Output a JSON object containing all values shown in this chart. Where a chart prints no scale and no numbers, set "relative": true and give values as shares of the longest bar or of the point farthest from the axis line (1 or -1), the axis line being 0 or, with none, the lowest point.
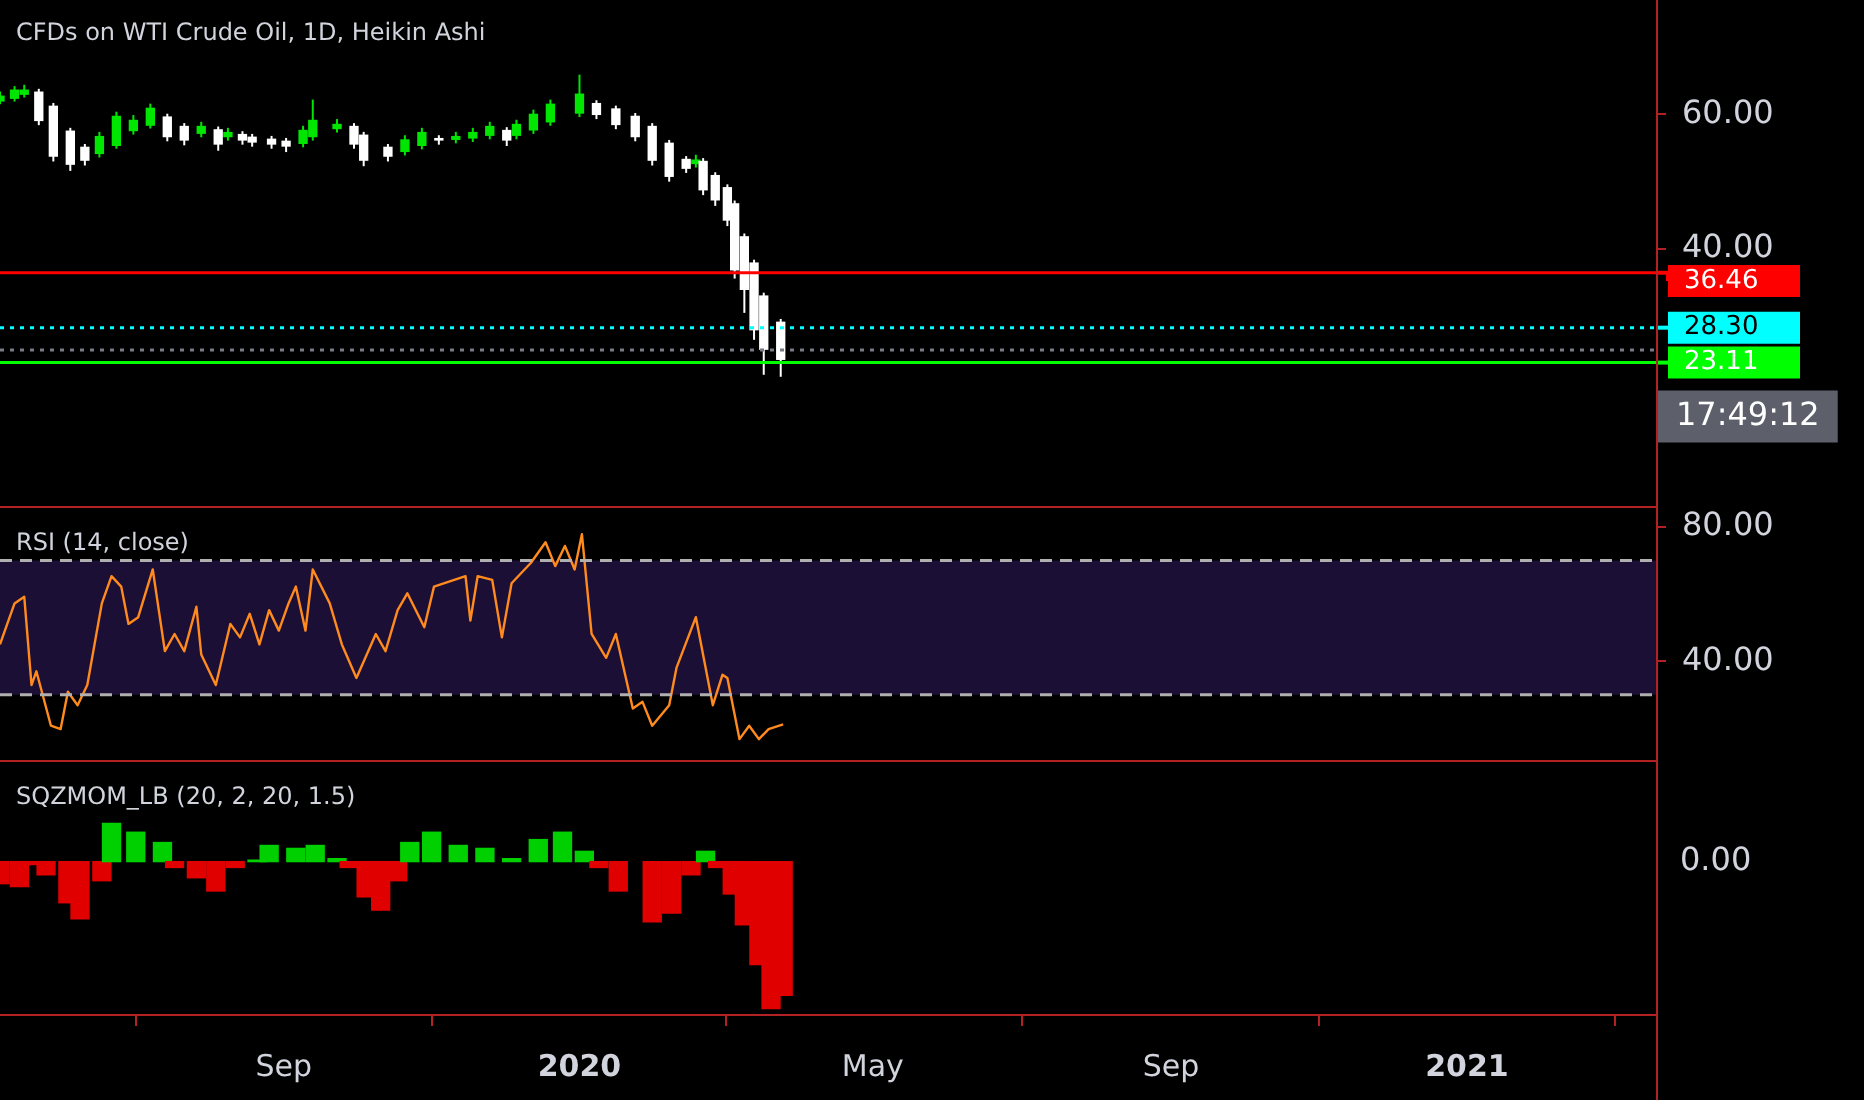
{
  "chart_data": [
    {
      "type": "candlestick",
      "title": "CFDs on WTI Crude Oil, 1D, Heikin Ashi",
      "x": [
        "2019-05-07",
        "2019-05-13",
        "2019-05-17",
        "2019-05-23",
        "2019-05-29",
        "2019-06-05",
        "2019-06-11",
        "2019-06-17",
        "2019-06-24",
        "2019-07-01",
        "2019-07-08",
        "2019-07-15",
        "2019-07-22",
        "2019-07-29",
        "2019-08-05",
        "2019-08-09",
        "2019-08-15",
        "2019-08-19",
        "2019-08-27",
        "2019-09-02",
        "2019-09-09",
        "2019-09-13",
        "2019-09-23",
        "2019-09-30",
        "2019-10-04",
        "2019-10-14",
        "2019-10-21",
        "2019-10-28",
        "2019-11-04",
        "2019-11-11",
        "2019-11-18",
        "2019-11-25",
        "2019-12-02",
        "2019-12-06",
        "2019-12-13",
        "2019-12-20",
        "2020-01-01",
        "2020-01-08",
        "2020-01-16",
        "2020-01-24",
        "2020-01-31",
        "2020-02-07",
        "2020-02-14",
        "2020-02-18",
        "2020-02-21",
        "2020-02-26",
        "2020-03-02",
        "2020-03-05",
        "2020-03-09",
        "2020-03-13",
        "2020-03-17",
        "2020-03-24"
      ],
      "ohlc": [
        [
          62.0,
          63.4,
          61.5,
          62.7
        ],
        [
          62.4,
          64.2,
          61.9,
          63.6
        ],
        [
          63.0,
          64.4,
          62.5,
          63.6
        ],
        [
          63.3,
          63.8,
          58.4,
          59.1
        ],
        [
          61.2,
          61.7,
          53.0,
          53.8
        ],
        [
          57.5,
          58.0,
          51.6,
          52.6
        ],
        [
          55.1,
          55.6,
          52.4,
          53.2
        ],
        [
          54.2,
          57.4,
          53.6,
          56.7
        ],
        [
          55.4,
          60.4,
          54.9,
          59.7
        ],
        [
          57.6,
          59.9,
          57.0,
          59.1
        ],
        [
          58.4,
          61.6,
          57.9,
          60.9
        ],
        [
          59.6,
          60.1,
          56.0,
          56.7
        ],
        [
          58.2,
          58.7,
          55.4,
          56.2
        ],
        [
          57.2,
          58.9,
          56.6,
          58.2
        ],
        [
          57.7,
          58.2,
          54.6,
          55.6
        ],
        [
          56.7,
          58.0,
          56.1,
          57.3
        ],
        [
          57.0,
          57.5,
          55.5,
          56.2
        ],
        [
          56.6,
          57.1,
          55.2,
          55.9
        ],
        [
          56.3,
          56.8,
          54.9,
          55.6
        ],
        [
          56.0,
          56.5,
          54.4,
          55.3
        ],
        [
          55.7,
          58.3,
          55.1,
          57.6
        ],
        [
          56.7,
          62.2,
          56.1,
          59.1
        ],
        [
          57.9,
          59.3,
          57.3,
          58.5
        ],
        [
          58.2,
          58.7,
          54.9,
          55.6
        ],
        [
          56.9,
          57.4,
          52.3,
          53.2
        ],
        [
          55.1,
          55.6,
          53.0,
          53.8
        ],
        [
          54.5,
          56.9,
          53.9,
          56.2
        ],
        [
          55.4,
          58.0,
          54.8,
          57.3
        ],
        [
          56.4,
          56.9,
          55.5,
          56.2
        ],
        [
          56.3,
          57.4,
          55.7,
          56.7
        ],
        [
          56.5,
          58.0,
          55.9,
          57.3
        ],
        [
          56.9,
          58.9,
          56.3,
          58.2
        ],
        [
          57.6,
          58.1,
          55.3,
          56.2
        ],
        [
          56.9,
          59.2,
          56.3,
          58.5
        ],
        [
          57.7,
          60.7,
          57.1,
          60.0
        ],
        [
          58.9,
          62.2,
          58.3,
          61.5
        ],
        [
          60.2,
          65.9,
          59.6,
          63.0
        ],
        [
          61.6,
          62.1,
          59.3,
          60.0
        ],
        [
          60.8,
          61.3,
          57.8,
          58.5
        ],
        [
          59.7,
          60.2,
          56.0,
          56.7
        ],
        [
          58.2,
          58.7,
          52.4,
          53.2
        ],
        [
          55.7,
          56.2,
          50.0,
          50.8
        ],
        [
          53.3,
          53.8,
          51.3,
          52.0
        ],
        [
          52.7,
          54.0,
          52.1,
          53.2
        ],
        [
          53.0,
          53.5,
          48.0,
          48.8
        ],
        [
          50.9,
          51.4,
          46.4,
          47.3
        ],
        [
          49.1,
          49.6,
          43.4,
          44.3
        ],
        [
          46.7,
          47.2,
          35.6,
          36.9
        ],
        [
          41.8,
          42.3,
          30.5,
          34.0
        ],
        [
          37.9,
          38.4,
          26.5,
          28.0
        ],
        [
          33.0,
          33.5,
          21.3,
          25.1
        ],
        [
          29.1,
          29.6,
          21.0,
          23.6
        ]
      ],
      "colors": [
        "#00e600",
        "#00e600",
        "#00e600",
        "#ffffff",
        "#ffffff",
        "#ffffff",
        "#ffffff",
        "#00e600",
        "#00e600",
        "#00e600",
        "#00e600",
        "#ffffff",
        "#ffffff",
        "#00e600",
        "#ffffff",
        "#00e600",
        "#ffffff",
        "#ffffff",
        "#ffffff",
        "#ffffff",
        "#00e600",
        "#00e600",
        "#00e600",
        "#ffffff",
        "#ffffff",
        "#ffffff",
        "#00e600",
        "#00e600",
        "#ffffff",
        "#00e600",
        "#00e600",
        "#00e600",
        "#ffffff",
        "#00e600",
        "#00e600",
        "#00e600",
        "#00e600",
        "#ffffff",
        "#ffffff",
        "#ffffff",
        "#ffffff",
        "#ffffff",
        "#ffffff",
        "#00e600",
        "#ffffff",
        "#ffffff",
        "#ffffff",
        "#ffffff",
        "#ffffff",
        "#ffffff",
        "#ffffff",
        "#ffffff"
      ],
      "xlim": [
        "2019-05-07",
        "2021-03-20"
      ],
      "ylim": [
        1.5,
        77
      ],
      "yticks": [
        {
          "value": 60,
          "label": "60.00"
        },
        {
          "value": 40,
          "label": "40.00"
        }
      ],
      "tick_labels": "y",
      "ref_lines": [
        {
          "axis": "y",
          "value": 36.46,
          "label": "36.46",
          "color": "#ff0000",
          "line_style": "solid"
        },
        {
          "axis": "y",
          "value": 28.3,
          "label": "28.30",
          "color": "#00ffff",
          "line_style": "dotted"
        },
        {
          "axis": "y",
          "value": 25,
          "color": "#787b86",
          "line_style": "dotted"
        },
        {
          "axis": "y",
          "value": 23.11,
          "label": "23.11",
          "color": "#00ff00",
          "line_style": "solid"
        }
      ],
      "annotations": [
        "17:49:12"
      ]
    },
    {
      "type": "line",
      "title": "RSI (14, close)",
      "x": [
        "2019-05-07",
        "2019-05-13",
        "2019-05-17",
        "2019-05-20",
        "2019-05-22",
        "2019-05-28",
        "2019-06-01",
        "2019-06-04",
        "2019-06-08",
        "2019-06-12",
        "2019-06-18",
        "2019-06-22",
        "2019-06-26",
        "2019-06-29",
        "2019-07-03",
        "2019-07-09",
        "2019-07-14",
        "2019-07-18",
        "2019-07-22",
        "2019-07-27",
        "2019-07-29",
        "2019-08-04",
        "2019-08-10",
        "2019-08-14",
        "2019-08-18",
        "2019-08-22",
        "2019-08-26",
        "2019-08-30",
        "2019-09-03",
        "2019-09-06",
        "2019-09-10",
        "2019-09-13",
        "2019-09-20",
        "2019-09-25",
        "2019-10-01",
        "2019-10-09",
        "2019-10-13",
        "2019-10-18",
        "2019-10-22",
        "2019-10-29",
        "2019-11-02",
        "2019-11-15",
        "2019-11-17",
        "2019-11-20",
        "2019-11-26",
        "2019-11-30",
        "2019-12-04",
        "2019-12-12",
        "2019-12-18",
        "2019-12-22",
        "2019-12-26",
        "2019-12-30",
        "2020-01-02",
        "2020-01-06",
        "2020-01-12",
        "2020-01-16",
        "2020-01-23",
        "2020-01-27",
        "2020-01-31",
        "2020-02-07",
        "2020-02-10",
        "2020-02-18",
        "2020-02-25",
        "2020-02-29",
        "2020-03-02",
        "2020-03-07",
        "2020-03-11",
        "2020-03-15",
        "2020-03-19",
        "2020-03-25"
      ],
      "series": [
        {
          "color": "#ff8a1e",
          "values": [
            45.0,
            57.2,
            59.2,
            32.9,
            37.0,
            20.8,
            19.8,
            30.9,
            26.9,
            32.9,
            57.2,
            65.3,
            62.2,
            51.1,
            53.1,
            67.3,
            43.0,
            48.1,
            43.0,
            56.2,
            42.0,
            32.9,
            51.1,
            47.1,
            54.1,
            45.0,
            55.2,
            49.1,
            57.2,
            62.2,
            49.1,
            67.3,
            57.2,
            45.0,
            35.0,
            48.1,
            43.0,
            55.2,
            60.2,
            50.1,
            62.2,
            65.3,
            52.1,
            65.3,
            64.2,
            47.1,
            63.2,
            69.3,
            75.4,
            68.3,
            74.3,
            67.3,
            77.8,
            48.1,
            41.0,
            48.1,
            25.9,
            27.9,
            20.8,
            26.9,
            38.0,
            53.1,
            26.9,
            36.0,
            35.0,
            16.8,
            20.8,
            16.8,
            19.8,
            21.2
          ]
        }
      ],
      "marker": "none",
      "line_style": "solid",
      "xlim": [
        "2019-05-07",
        "2021-03-20"
      ],
      "ylim": [
        10,
        85
      ],
      "yticks": [
        {
          "value": 80,
          "label": "80.00"
        },
        {
          "value": 40,
          "label": "40.00"
        }
      ],
      "tick_labels": "y",
      "bands": [
        {
          "axis": "y",
          "from": 30,
          "to": 70,
          "color": "#1c0f36"
        }
      ],
      "ref_lines": [
        {
          "axis": "y",
          "value": 70,
          "color": "#b0b0b0",
          "line_style": "dashed"
        },
        {
          "axis": "y",
          "value": 30,
          "color": "#b0b0b0",
          "line_style": "dashed"
        }
      ]
    },
    {
      "type": "bar",
      "title": "SQZMOM_LB (20, 2, 20, 1.5)",
      "relative": true,
      "x": [
        "2019-05-07",
        "2019-05-15",
        "2019-05-20",
        "2019-05-26",
        "2019-06-04",
        "2019-06-09",
        "2019-06-18",
        "2019-06-22",
        "2019-07-02",
        "2019-07-13",
        "2019-07-18",
        "2019-07-27",
        "2019-08-04",
        "2019-08-12",
        "2019-08-21",
        "2019-08-26",
        "2019-09-06",
        "2019-09-14",
        "2019-09-23",
        "2019-09-28",
        "2019-10-05",
        "2019-10-11",
        "2019-10-18",
        "2019-10-23",
        "2019-11-01",
        "2019-11-12",
        "2019-11-23",
        "2019-12-04",
        "2019-12-15",
        "2019-12-25",
        "2020-01-03",
        "2020-01-09",
        "2020-01-17",
        "2020-01-31",
        "2020-02-08",
        "2020-02-16",
        "2020-02-22",
        "2020-02-27",
        "2020-03-04",
        "2020-03-09",
        "2020-03-15",
        "2020-03-20",
        "2020-03-25"
      ],
      "values": [
        -0.15,
        -0.17,
        -0.02,
        -0.09,
        -0.28,
        -0.39,
        -0.13,
        0.26,
        0.2,
        0.13,
        -0.04,
        -0.11,
        -0.2,
        -0.04,
        0.01,
        0.11,
        0.09,
        0.11,
        0.02,
        -0.04,
        -0.24,
        -0.33,
        -0.13,
        0.13,
        0.2,
        0.11,
        0.09,
        0.02,
        0.15,
        0.2,
        0.07,
        -0.04,
        -0.2,
        -0.41,
        -0.35,
        -0.09,
        0.07,
        -0.04,
        -0.22,
        -0.43,
        -0.7,
        -1,
        -0.91
      ],
      "colors": [
        "#e00000",
        "#e00000",
        "#e00000",
        "#e00000",
        "#e00000",
        "#e00000",
        "#e00000",
        "#00d000",
        "#00d000",
        "#00d000",
        "#e00000",
        "#e00000",
        "#e00000",
        "#e00000",
        "#00d000",
        "#00d000",
        "#00d000",
        "#00d000",
        "#00d000",
        "#e00000",
        "#e00000",
        "#e00000",
        "#e00000",
        "#00d000",
        "#00d000",
        "#00d000",
        "#00d000",
        "#00d000",
        "#00d000",
        "#00d000",
        "#00d000",
        "#e00000",
        "#e00000",
        "#e00000",
        "#e00000",
        "#e00000",
        "#00d000",
        "#e00000",
        "#e00000",
        "#e00000",
        "#e00000",
        "#e00000",
        "#e00000"
      ],
      "xlim": [
        "2019-05-07",
        "2021-03-20"
      ],
      "xticks": [
        {
          "value": "2019-09-01",
          "label": "Sep"
        },
        {
          "value": "2020-01-01",
          "label": "2020"
        },
        {
          "value": "2020-05-01",
          "label": "May"
        },
        {
          "value": "2020-09-01",
          "label": "Sep"
        },
        {
          "value": "2021-01-01",
          "label": "2021"
        }
      ],
      "tick_labels": "x",
      "annotations": [
        "0.00"
      ]
    }
  ]
}
